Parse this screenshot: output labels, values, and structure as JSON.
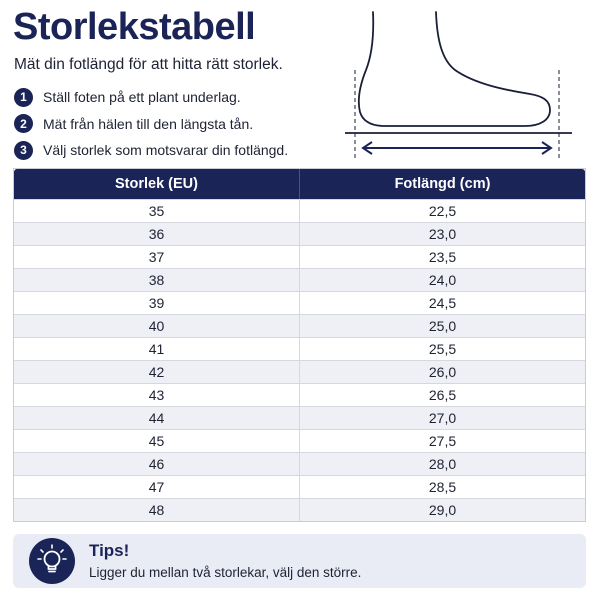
{
  "header": {
    "title": "Storlekstabell",
    "subtitle": "Mät din fotlängd för att hitta rätt storlek."
  },
  "steps": [
    {
      "number": "1",
      "text": "Ställ foten på ett plant underlag."
    },
    {
      "number": "2",
      "text": "Mät från hälen till den längsta tån."
    },
    {
      "number": "3",
      "text": "Välj storlek som motsvarar din fotlängd."
    }
  ],
  "table": {
    "headers": [
      "Storlek (EU)",
      "Fotlängd (cm)"
    ],
    "rows": [
      [
        "35",
        "22,5"
      ],
      [
        "36",
        "23,0"
      ],
      [
        "37",
        "23,5"
      ],
      [
        "38",
        "24,0"
      ],
      [
        "39",
        "24,5"
      ],
      [
        "40",
        "25,0"
      ],
      [
        "41",
        "25,5"
      ],
      [
        "42",
        "26,0"
      ],
      [
        "43",
        "26,5"
      ],
      [
        "44",
        "27,0"
      ],
      [
        "45",
        "27,5"
      ],
      [
        "46",
        "28,0"
      ],
      [
        "47",
        "28,5"
      ],
      [
        "48",
        "29,0"
      ]
    ]
  },
  "tip": {
    "icon": "lightbulb-icon",
    "title": "Tips!",
    "text": "Ligger du mellan två storlekar, välj den större."
  },
  "colors": {
    "navy": "#1a2456",
    "row_alt": "#eef0f5",
    "tip_bg": "#e9ecf5"
  }
}
